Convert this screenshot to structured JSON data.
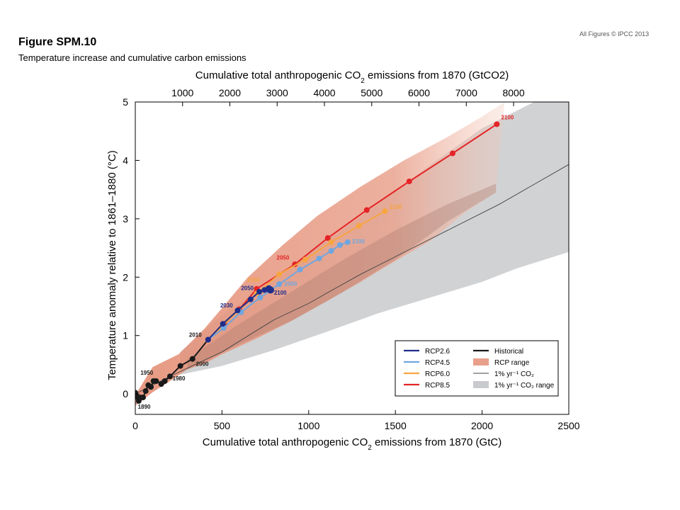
{
  "header": {
    "copyright": "All Figures © IPCC 2013",
    "title": "Figure SPM.10",
    "subtitle": "Temperature increase and cumulative carbon emissions"
  },
  "chart_data": {
    "type": "line",
    "top_axis_label": "Cumulative total anthropogenic CO2 emissions from 1870 (GtCO2)",
    "top_ticks": [
      1000,
      2000,
      3000,
      4000,
      5000,
      6000,
      7000,
      8000
    ],
    "xlabel": "Cumulative total anthropogenic CO2 emissions from 1870 (GtC)",
    "ylabel": "Temperature anomaly relative to 1861–1880 (°C)",
    "xlim": [
      0,
      2500
    ],
    "ylim": [
      -0.35,
      5
    ],
    "x_ticks": [
      0,
      500,
      1000,
      1500,
      2000,
      2500
    ],
    "y_ticks": [
      0,
      1,
      2,
      3,
      4,
      5
    ],
    "legend_position": "bottom-right",
    "legend": [
      {
        "label": "RCP2.6",
        "color": "#1f2d8a",
        "kind": "line"
      },
      {
        "label": "RCP4.5",
        "color": "#6fa6df",
        "kind": "line"
      },
      {
        "label": "RCP6.0",
        "color": "#f7a541",
        "kind": "line"
      },
      {
        "label": "RCP8.5",
        "color": "#e42427",
        "kind": "line"
      },
      {
        "label": "Historical",
        "color": "#1a1a1a",
        "kind": "line"
      },
      {
        "label": "RCP range",
        "color": "#e8a08a",
        "kind": "box"
      },
      {
        "label": "1% yr⁻¹ CO₂",
        "color": "#444444",
        "kind": "thin"
      },
      {
        "label": "1% yr⁻¹ CO₂ range",
        "color": "#c8cacd",
        "kind": "box"
      }
    ],
    "series": [
      {
        "name": "Historical",
        "color": "#1a1a1a",
        "points": [
          [
            0,
            0.02
          ],
          [
            10,
            -0.05
          ],
          [
            20,
            -0.12
          ],
          [
            30,
            -0.06
          ],
          [
            45,
            -0.06
          ],
          [
            60,
            0.05
          ],
          [
            75,
            0.15
          ],
          [
            90,
            0.12
          ],
          [
            105,
            0.22
          ],
          [
            120,
            0.22
          ],
          [
            150,
            0.17
          ],
          [
            170,
            0.22
          ],
          [
            200,
            0.3
          ],
          [
            260,
            0.48
          ],
          [
            330,
            0.6
          ],
          [
            420,
            0.93
          ]
        ],
        "labels": [
          {
            "text": "1890",
            "x": 15,
            "y": -0.25
          },
          {
            "text": "1950",
            "x": 30,
            "y": 0.33
          },
          {
            "text": "1980",
            "x": 215,
            "y": 0.23
          },
          {
            "text": "2000",
            "x": 350,
            "y": 0.48
          },
          {
            "text": "2010",
            "x": 310,
            "y": 0.98
          }
        ]
      },
      {
        "name": "RCP8.5",
        "color": "#e42427",
        "points": [
          [
            420,
            0.93
          ],
          [
            515,
            1.2
          ],
          [
            600,
            1.45
          ],
          [
            700,
            1.8
          ],
          [
            920,
            2.22
          ],
          [
            1110,
            2.67
          ],
          [
            1335,
            3.15
          ],
          [
            1580,
            3.64
          ],
          [
            1830,
            4.12
          ],
          [
            2085,
            4.62
          ]
        ],
        "labels": [
          {
            "text": "2050",
            "x": 815,
            "y": 2.3
          },
          {
            "text": "2100",
            "x": 2110,
            "y": 4.7
          }
        ]
      },
      {
        "name": "RCP6.0",
        "color": "#f7a541",
        "points": [
          [
            420,
            0.93
          ],
          [
            500,
            1.15
          ],
          [
            590,
            1.42
          ],
          [
            700,
            1.72
          ],
          [
            830,
            2.05
          ],
          [
            980,
            2.3
          ],
          [
            1130,
            2.6
          ],
          [
            1290,
            2.88
          ],
          [
            1440,
            3.13
          ]
        ],
        "labels": [
          {
            "text": "2050",
            "x": 645,
            "y": 1.92
          },
          {
            "text": "2100",
            "x": 1465,
            "y": 3.17
          }
        ]
      },
      {
        "name": "RCP4.5",
        "color": "#6fa6df",
        "points": [
          [
            420,
            0.93
          ],
          [
            510,
            1.13
          ],
          [
            610,
            1.4
          ],
          [
            720,
            1.65
          ],
          [
            830,
            1.88
          ],
          [
            950,
            2.13
          ],
          [
            1060,
            2.32
          ],
          [
            1130,
            2.45
          ],
          [
            1180,
            2.55
          ],
          [
            1225,
            2.6
          ]
        ],
        "labels": [
          {
            "text": "2050",
            "x": 860,
            "y": 1.85
          },
          {
            "text": "2100",
            "x": 1250,
            "y": 2.58
          }
        ]
      },
      {
        "name": "RCP2.6",
        "color": "#1f2d8a",
        "points": [
          [
            420,
            0.93
          ],
          [
            505,
            1.2
          ],
          [
            590,
            1.43
          ],
          [
            665,
            1.62
          ],
          [
            715,
            1.75
          ],
          [
            745,
            1.78
          ],
          [
            770,
            1.8
          ],
          [
            780,
            1.78
          ]
        ],
        "labels": [
          {
            "text": "2030",
            "x": 490,
            "y": 1.48
          },
          {
            "text": "2050",
            "x": 610,
            "y": 1.78
          },
          {
            "text": "2100",
            "x": 800,
            "y": 1.7
          }
        ]
      }
    ],
    "one_percent_line": [
      [
        0,
        0
      ],
      [
        200,
        0.3
      ],
      [
        500,
        0.72
      ],
      [
        800,
        1.27
      ],
      [
        1000,
        1.55
      ],
      [
        1100,
        1.72
      ],
      [
        1300,
        2.05
      ],
      [
        1500,
        2.35
      ],
      [
        1800,
        2.8
      ],
      [
        2100,
        3.25
      ],
      [
        2500,
        3.93
      ]
    ],
    "one_percent_range": {
      "upper": [
        [
          260,
          0.72
        ],
        [
          500,
          1.35
        ],
        [
          800,
          1.95
        ],
        [
          1100,
          2.62
        ],
        [
          1400,
          3.25
        ],
        [
          1700,
          3.92
        ],
        [
          2000,
          4.55
        ],
        [
          2300,
          5.0
        ],
        [
          2500,
          5.0
        ]
      ],
      "lower": [
        [
          2500,
          2.43
        ],
        [
          2200,
          2.15
        ],
        [
          2000,
          1.92
        ],
        [
          1700,
          1.65
        ],
        [
          1400,
          1.38
        ],
        [
          1100,
          1.06
        ],
        [
          800,
          0.75
        ],
        [
          500,
          0.48
        ],
        [
          260,
          0.33
        ]
      ]
    },
    "rcp_range": {
      "upper": [
        [
          0,
          -0.02
        ],
        [
          100,
          0.46
        ],
        [
          250,
          0.68
        ],
        [
          400,
          1.12
        ],
        [
          500,
          1.47
        ],
        [
          650,
          2.0
        ],
        [
          850,
          2.55
        ],
        [
          1050,
          3.05
        ],
        [
          1300,
          3.55
        ],
        [
          1550,
          4.0
        ],
        [
          1800,
          4.4
        ],
        [
          2000,
          4.75
        ],
        [
          2130,
          5.0
        ]
      ],
      "lower": [
        [
          2080,
          3.45
        ],
        [
          1900,
          3.1
        ],
        [
          1700,
          2.62
        ],
        [
          1500,
          2.28
        ],
        [
          1300,
          1.92
        ],
        [
          1100,
          1.58
        ],
        [
          900,
          1.25
        ],
        [
          700,
          0.95
        ],
        [
          500,
          0.68
        ],
        [
          400,
          0.52
        ],
        [
          300,
          0.42
        ],
        [
          200,
          0.22
        ],
        [
          100,
          0.03
        ],
        [
          0,
          -0.2
        ]
      ]
    }
  }
}
